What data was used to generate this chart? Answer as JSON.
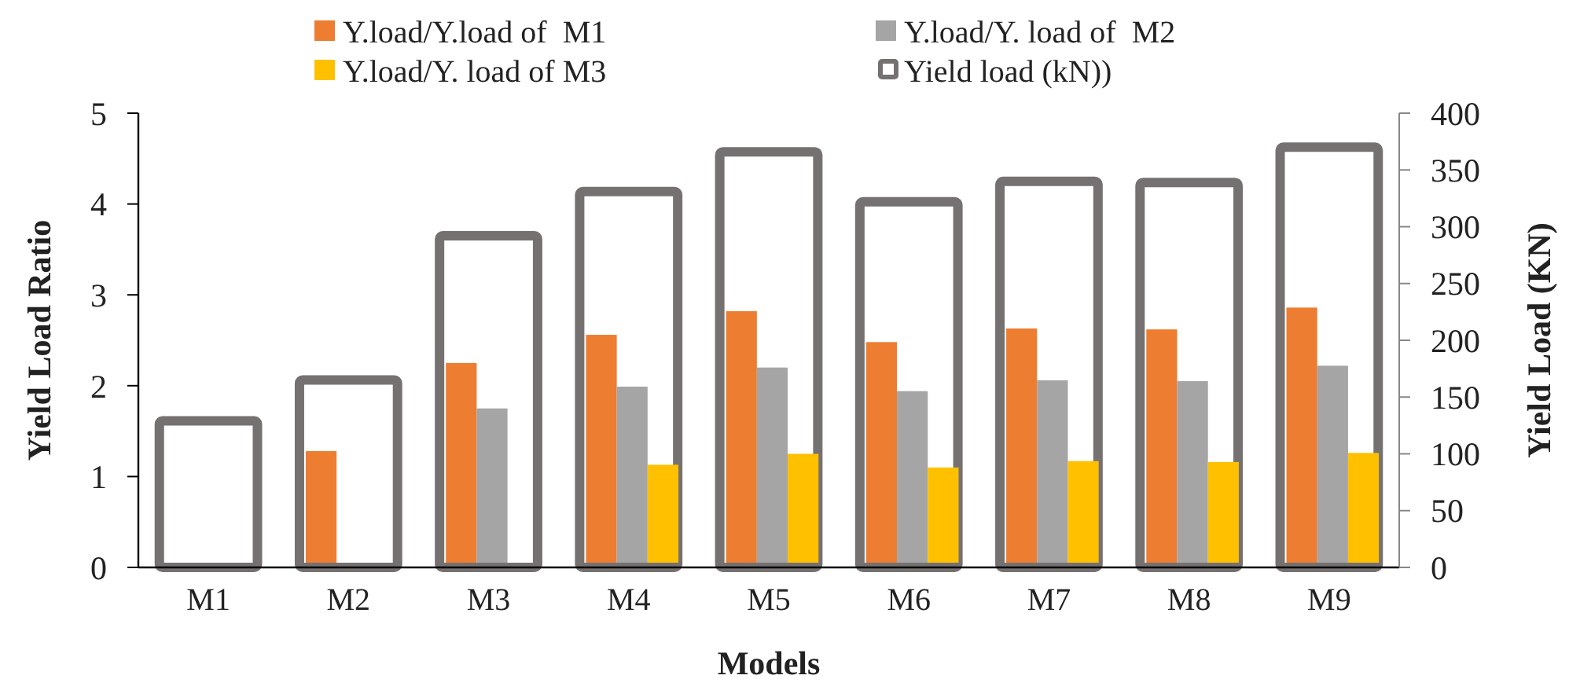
{
  "chart_data": {
    "type": "bar",
    "xlabel": "Models",
    "ylabel": "Yield Load Ratio",
    "y2label": "Yield Load (KN)",
    "categories": [
      "M1",
      "M2",
      "M3",
      "M4",
      "M5",
      "M6",
      "M7",
      "M8",
      "M9"
    ],
    "series": [
      {
        "name": "Y.load/Y.load of  M1",
        "color": "#ed7d31",
        "values": [
          null,
          1.28,
          2.25,
          2.56,
          2.82,
          2.48,
          2.63,
          2.62,
          2.86
        ]
      },
      {
        "name": "Y.load/Y. load of  M2",
        "color": "#a5a5a5",
        "values": [
          null,
          null,
          1.75,
          1.99,
          2.2,
          1.94,
          2.06,
          2.05,
          2.22
        ]
      },
      {
        "name": "Y.load/Y. load of M3",
        "color": "#ffc000",
        "values": [
          null,
          null,
          null,
          1.13,
          1.25,
          1.1,
          1.17,
          1.16,
          1.26
        ]
      },
      {
        "name": "Yield load (kN))",
        "color": "#767171",
        "axis": "y2",
        "values": [
          129,
          165,
          292,
          331,
          366,
          322,
          340,
          339,
          370
        ]
      }
    ],
    "ylim": [
      0,
      5
    ],
    "yticks": [
      0,
      1,
      2,
      3,
      4,
      5
    ],
    "y2lim": [
      0,
      400
    ],
    "y2ticks": [
      0,
      50,
      100,
      150,
      200,
      250,
      300,
      350,
      400
    ],
    "grid": false,
    "legend": "top"
  }
}
